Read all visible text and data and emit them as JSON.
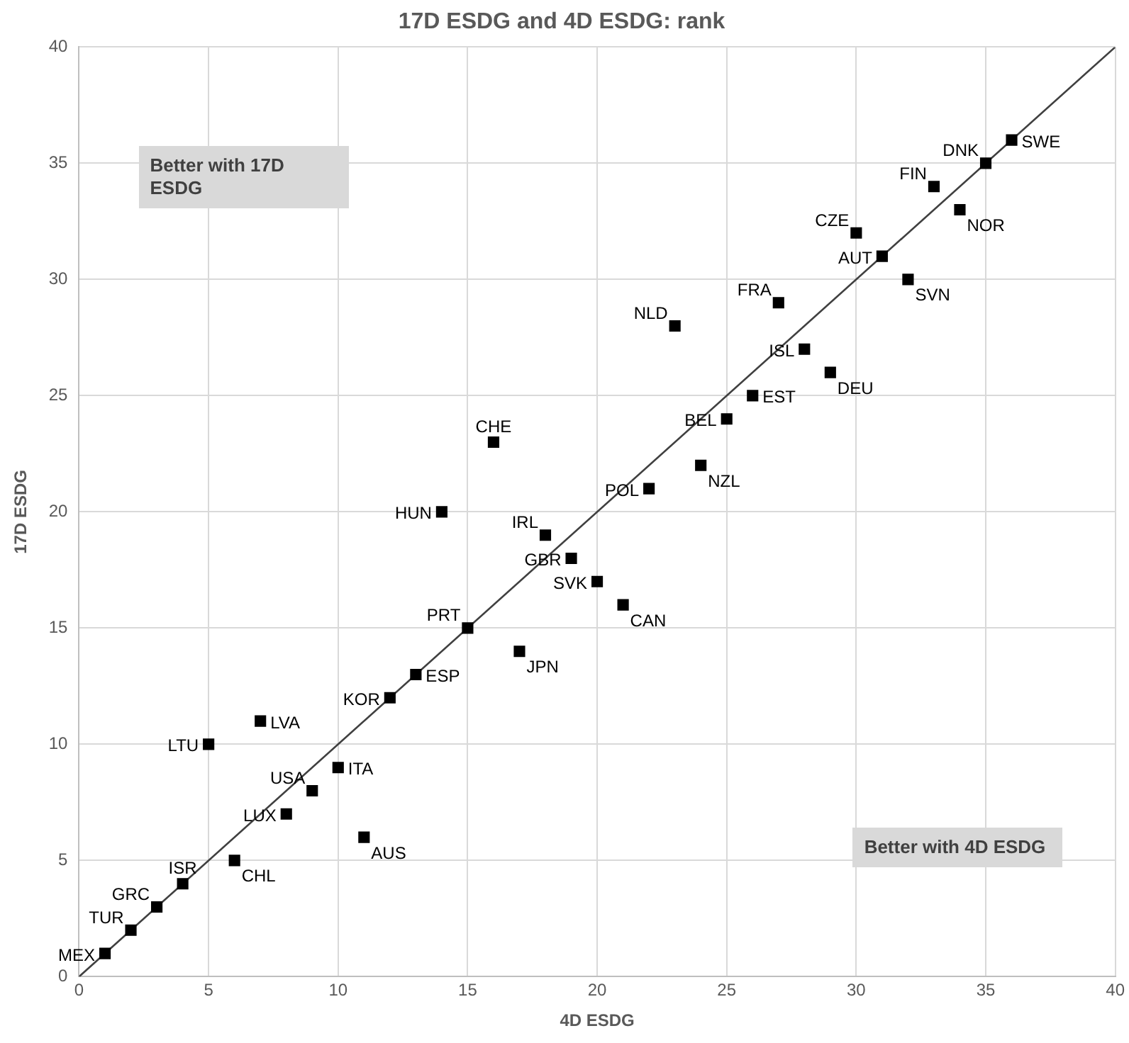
{
  "chart_data": {
    "type": "scatter",
    "title": "17D ESDG and 4D ESDG: rank",
    "xlabel": "4D ESDG",
    "ylabel": "17D ESDG",
    "xlim": [
      0,
      40
    ],
    "xticks": [
      0,
      5,
      10,
      15,
      20,
      25,
      30,
      35,
      40
    ],
    "ylim": [
      0,
      40
    ],
    "yticks": [
      0,
      5,
      10,
      15,
      20,
      25,
      30,
      35,
      40
    ],
    "grid": true,
    "legend": false,
    "marker": "square",
    "annotations": [
      "Better with 17D ESDG",
      "Better with 4D ESDG"
    ],
    "series": [
      {
        "name": "MEX",
        "color": "#000000",
        "x": [
          1
        ],
        "values": [
          1
        ]
      },
      {
        "name": "TUR",
        "color": "#000000",
        "x": [
          2
        ],
        "values": [
          2
        ]
      },
      {
        "name": "GRC",
        "color": "#000000",
        "x": [
          3
        ],
        "values": [
          3
        ]
      },
      {
        "name": "ISR",
        "color": "#000000",
        "x": [
          4
        ],
        "values": [
          4
        ]
      },
      {
        "name": "LTU",
        "color": "#000000",
        "x": [
          5
        ],
        "values": [
          10
        ]
      },
      {
        "name": "CHL",
        "color": "#000000",
        "x": [
          6
        ],
        "values": [
          5
        ]
      },
      {
        "name": "LVA",
        "color": "#000000",
        "x": [
          7
        ],
        "values": [
          11
        ]
      },
      {
        "name": "LUX",
        "color": "#000000",
        "x": [
          8
        ],
        "values": [
          7
        ]
      },
      {
        "name": "USA",
        "color": "#000000",
        "x": [
          9
        ],
        "values": [
          8
        ]
      },
      {
        "name": "ITA",
        "color": "#000000",
        "x": [
          10
        ],
        "values": [
          9
        ]
      },
      {
        "name": "AUS",
        "color": "#000000",
        "x": [
          11
        ],
        "values": [
          6
        ]
      },
      {
        "name": "KOR",
        "color": "#000000",
        "x": [
          12
        ],
        "values": [
          12
        ]
      },
      {
        "name": "ESP",
        "color": "#000000",
        "x": [
          13
        ],
        "values": [
          13
        ]
      },
      {
        "name": "HUN",
        "color": "#000000",
        "x": [
          14
        ],
        "values": [
          20
        ]
      },
      {
        "name": "PRT",
        "color": "#000000",
        "x": [
          15
        ],
        "values": [
          15
        ]
      },
      {
        "name": "CHE",
        "color": "#000000",
        "x": [
          16
        ],
        "values": [
          23
        ]
      },
      {
        "name": "JPN",
        "color": "#000000",
        "x": [
          17
        ],
        "values": [
          14
        ]
      },
      {
        "name": "IRL",
        "color": "#000000",
        "x": [
          18
        ],
        "values": [
          19
        ]
      },
      {
        "name": "GBR",
        "color": "#000000",
        "x": [
          19
        ],
        "values": [
          18
        ]
      },
      {
        "name": "SVK",
        "color": "#000000",
        "x": [
          20
        ],
        "values": [
          17
        ]
      },
      {
        "name": "CAN",
        "color": "#000000",
        "x": [
          21
        ],
        "values": [
          16
        ]
      },
      {
        "name": "POL",
        "color": "#000000",
        "x": [
          22
        ],
        "values": [
          21
        ]
      },
      {
        "name": "NLD",
        "color": "#000000",
        "x": [
          23
        ],
        "values": [
          28
        ]
      },
      {
        "name": "NZL",
        "color": "#000000",
        "x": [
          24
        ],
        "values": [
          22
        ]
      },
      {
        "name": "BEL",
        "color": "#000000",
        "x": [
          25
        ],
        "values": [
          24
        ]
      },
      {
        "name": "EST",
        "color": "#000000",
        "x": [
          26
        ],
        "values": [
          25
        ]
      },
      {
        "name": "FRA",
        "color": "#000000",
        "x": [
          27
        ],
        "values": [
          29
        ]
      },
      {
        "name": "ISL",
        "color": "#000000",
        "x": [
          28
        ],
        "values": [
          27
        ]
      },
      {
        "name": "DEU",
        "color": "#000000",
        "x": [
          29
        ],
        "values": [
          26
        ]
      },
      {
        "name": "CZE",
        "color": "#000000",
        "x": [
          30
        ],
        "values": [
          32
        ]
      },
      {
        "name": "AUT",
        "color": "#000000",
        "x": [
          31
        ],
        "values": [
          31
        ]
      },
      {
        "name": "SVN",
        "color": "#000000",
        "x": [
          32
        ],
        "values": [
          30
        ]
      },
      {
        "name": "FIN",
        "color": "#000000",
        "x": [
          33
        ],
        "values": [
          34
        ]
      },
      {
        "name": "NOR",
        "color": "#000000",
        "x": [
          34
        ],
        "values": [
          33
        ]
      },
      {
        "name": "DNK",
        "color": "#000000",
        "x": [
          35
        ],
        "values": [
          35
        ]
      },
      {
        "name": "SWE",
        "color": "#000000",
        "x": [
          36
        ],
        "values": [
          36
        ]
      },
      {
        "type": "line",
        "color": "#404040",
        "marker": "none",
        "x": [
          0,
          40
        ],
        "values": [
          0,
          40
        ]
      }
    ]
  }
}
